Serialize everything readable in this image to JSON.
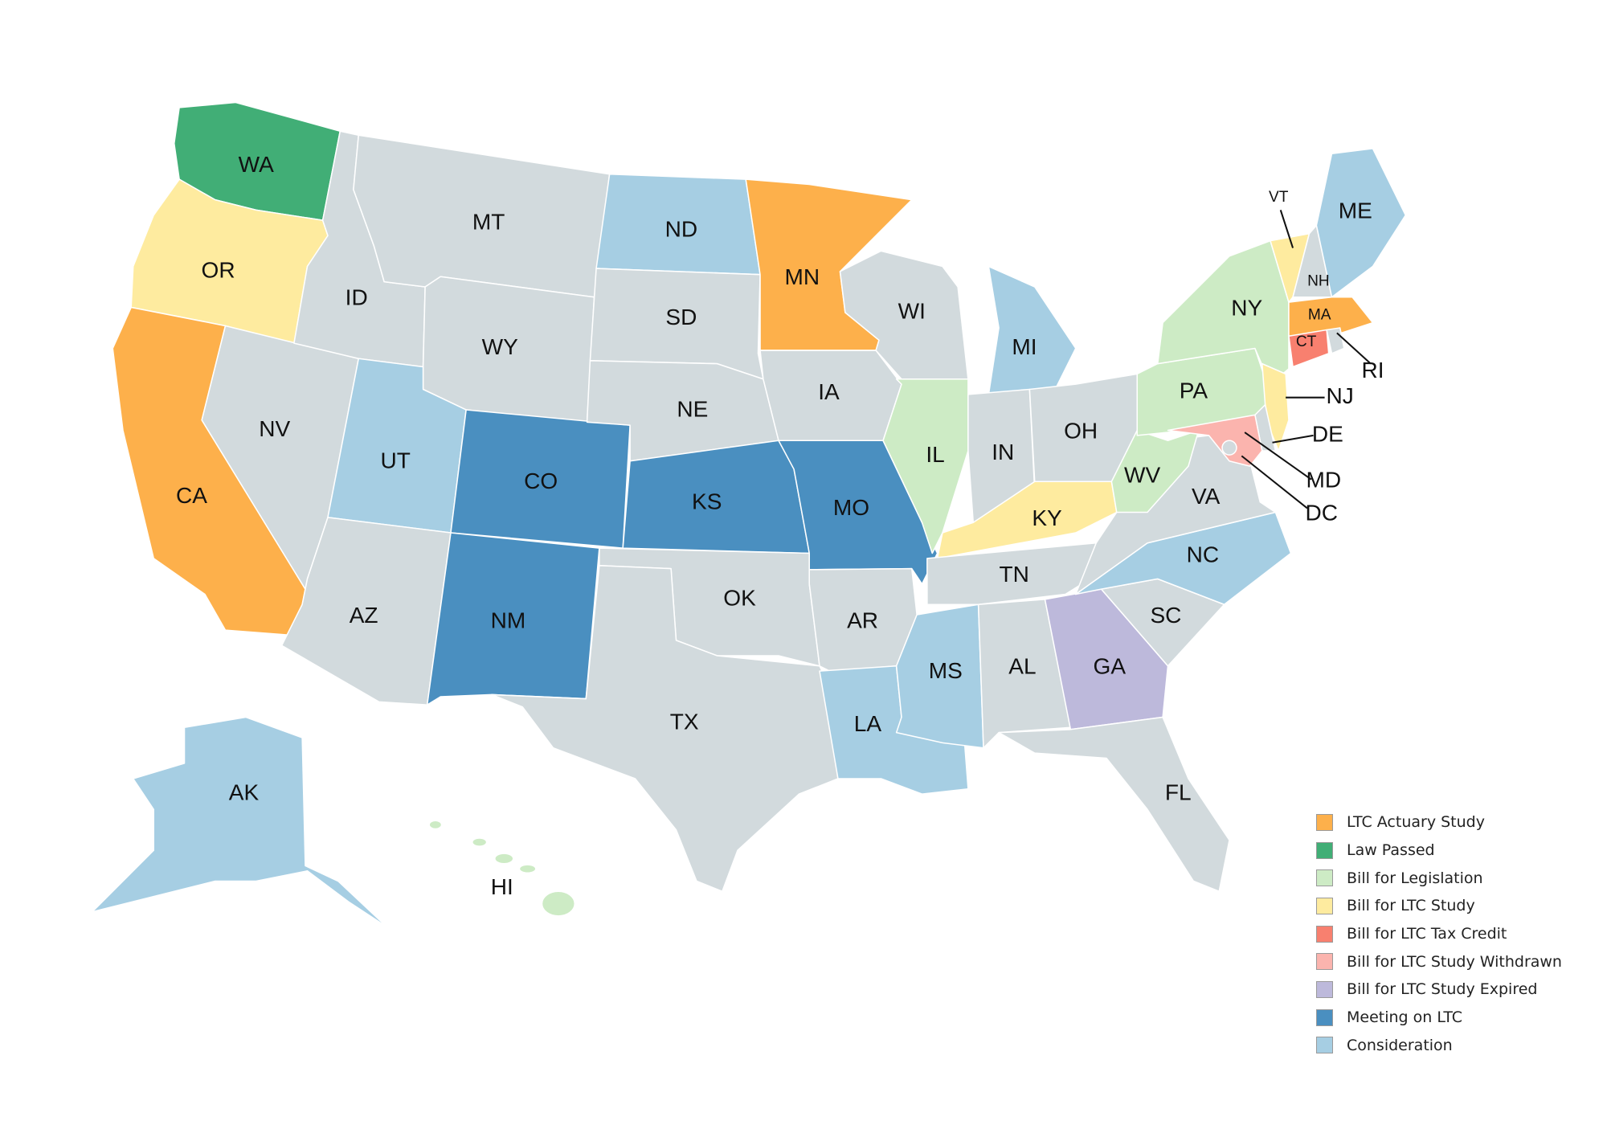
{
  "legend": [
    {
      "label": "LTC Actuary Study",
      "color": "#FDB04B"
    },
    {
      "label": "Law Passed",
      "color": "#41AE76"
    },
    {
      "label": "Bill for Legislation",
      "color": "#CDEBC5"
    },
    {
      "label": "Bill for LTC Study",
      "color": "#FEEB9F"
    },
    {
      "label": "Bill for LTC Tax Credit",
      "color": "#F8806F"
    },
    {
      "label": "Bill for LTC Study Withdrawn",
      "color": "#FBB4AE"
    },
    {
      "label": "Bill for LTC Study Expired",
      "color": "#BDB9DB"
    },
    {
      "label": "Meeting on LTC",
      "color": "#4A8FC0"
    },
    {
      "label": "Consideration",
      "color": "#A6CEE3"
    }
  ],
  "default_color": "#D2DADD",
  "states": {
    "WA": "Law Passed",
    "CA": "LTC Actuary Study",
    "MN": "LTC Actuary Study",
    "MA": "LTC Actuary Study",
    "NY": "Bill for Legislation",
    "PA": "Bill for Legislation",
    "WV": "Bill for Legislation",
    "IL": "Bill for Legislation",
    "HI": "Bill for Legislation",
    "OR": "Bill for LTC Study",
    "KY": "Bill for LTC Study",
    "VT": "Bill for LTC Study",
    "NJ": "Bill for LTC Study",
    "CT": "Bill for LTC Tax Credit",
    "MD": "Bill for LTC Study Withdrawn",
    "GA": "Bill for LTC Study Expired",
    "CO": "Meeting on LTC",
    "KS": "Meeting on LTC",
    "MO": "Meeting on LTC",
    "NM": "Meeting on LTC",
    "ND": "Consideration",
    "UT": "Consideration",
    "MI": "Consideration",
    "ME": "Consideration",
    "NC": "Consideration",
    "MS": "Consideration",
    "LA": "Consideration",
    "AK": "Consideration",
    "NV": null,
    "ID": null,
    "MT": null,
    "WY": null,
    "AZ": null,
    "SD": null,
    "NE": null,
    "OK": null,
    "TX": null,
    "IA": null,
    "AR": null,
    "WI": null,
    "IN": null,
    "OH": null,
    "TN": null,
    "AL": null,
    "FL": null,
    "SC": null,
    "VA": null,
    "NH": null,
    "RI": null,
    "DE": null,
    "DC": null
  }
}
